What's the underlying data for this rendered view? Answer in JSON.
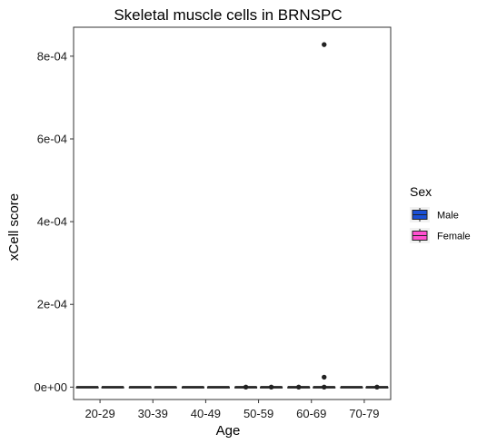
{
  "chart_data": {
    "type": "box",
    "title": "Skeletal muscle cells in BRNSPC",
    "xlabel": "Age",
    "ylabel": "xCell score",
    "categories": [
      "20-29",
      "30-39",
      "40-49",
      "50-59",
      "60-69",
      "70-79"
    ],
    "yticks": [
      0,
      0.0002,
      0.0004,
      0.0006,
      0.0008
    ],
    "ytick_labels": [
      "0e+00",
      "2e-04",
      "4e-04",
      "6e-04",
      "8e-04"
    ],
    "ylim": [
      -3e-05,
      0.00087
    ],
    "grid": false,
    "legend": {
      "title": "Sex",
      "placement": "right",
      "entries": [
        "Male",
        "Female"
      ]
    },
    "series": [
      {
        "name": "Male",
        "color": "#1a4fd6",
        "boxes": [
          {
            "q1": 0,
            "median": 0,
            "q3": 0,
            "outliers": []
          },
          {
            "q1": 0,
            "median": 0,
            "q3": 0,
            "outliers": []
          },
          {
            "q1": 0,
            "median": 0,
            "q3": 0,
            "outliers": []
          },
          {
            "q1": 0,
            "median": 0,
            "q3": 0,
            "outliers": [
              0
            ]
          },
          {
            "q1": 0,
            "median": 0,
            "q3": 0,
            "outliers": [
              0
            ]
          },
          {
            "q1": 0,
            "median": 0,
            "q3": 0,
            "outliers": []
          }
        ]
      },
      {
        "name": "Female",
        "color": "#ff4fd0",
        "boxes": [
          {
            "q1": 0,
            "median": 0,
            "q3": 0,
            "outliers": []
          },
          {
            "q1": 0,
            "median": 0,
            "q3": 0,
            "outliers": []
          },
          {
            "q1": 0,
            "median": 0,
            "q3": 0,
            "outliers": []
          },
          {
            "q1": 0,
            "median": 0,
            "q3": 0,
            "outliers": [
              0
            ]
          },
          {
            "q1": 0,
            "median": 0,
            "q3": 0,
            "outliers": [
              0,
              2.4e-05,
              0.000828
            ]
          },
          {
            "q1": 0,
            "median": 0,
            "q3": 0,
            "outliers": [
              0
            ]
          }
        ]
      }
    ]
  }
}
